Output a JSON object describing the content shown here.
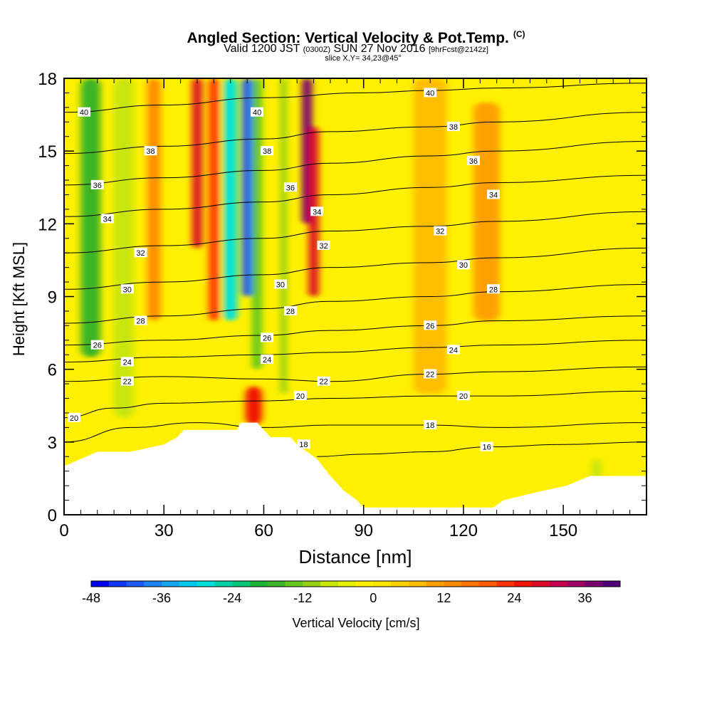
{
  "header": {
    "title": "Angled Section: Vertical Velocity & Pot.Temp.",
    "title_unit": "(C)",
    "valid_prefix": "Valid 1200 JST",
    "valid_utc": "(0300Z)",
    "valid_date": "SUN 27 Nov 2016",
    "forecast": "[9hrFcst@2142z]",
    "slice": "slice X,Y= 34,23@45°"
  },
  "chart_data": {
    "type": "heatmap",
    "xlabel": "Distance [nm]",
    "ylabel": "Height [Kft MSL]",
    "xlim": [
      0,
      175
    ],
    "ylim": [
      0,
      18
    ],
    "xticks": [
      0,
      30,
      60,
      90,
      120,
      150
    ],
    "yticks": [
      0,
      3,
      6,
      9,
      12,
      15,
      18
    ],
    "colorbar": {
      "label": "Vertical Velocity [cm/s]",
      "ticks": [
        -48,
        -36,
        -24,
        -12,
        0,
        12,
        24,
        36
      ],
      "bins": [
        -48,
        -45,
        -42,
        -39,
        -36,
        -33,
        -30,
        -27,
        -24,
        -21,
        -18,
        -15,
        -12,
        -9,
        -6,
        -3,
        0,
        3,
        6,
        9,
        12,
        15,
        18,
        21,
        24,
        27,
        30,
        33,
        36,
        39
      ],
      "colors": [
        "#0000f0",
        "#0f37f5",
        "#1e5af5",
        "#1e82f5",
        "#14a5f0",
        "#00c8f0",
        "#00e1dc",
        "#00d2a5",
        "#00c878",
        "#1eb43c",
        "#3cb428",
        "#64c81e",
        "#96d214",
        "#c8e60a",
        "#e6f000",
        "#fff000",
        "#ffe600",
        "#ffd200",
        "#ffbe00",
        "#ffa000",
        "#ff8c00",
        "#ff7300",
        "#ff5a00",
        "#ff3200",
        "#f01400",
        "#dc0a28",
        "#c80050",
        "#a00064",
        "#78006e",
        "#500078"
      ]
    },
    "terrain_kft": [
      [
        0,
        2.0
      ],
      [
        5,
        2.3
      ],
      [
        10,
        2.6
      ],
      [
        20,
        2.6
      ],
      [
        30,
        2.9
      ],
      [
        34,
        3.2
      ],
      [
        36,
        3.5
      ],
      [
        52,
        3.5
      ],
      [
        53,
        3.8
      ],
      [
        58,
        3.8
      ],
      [
        60,
        3.5
      ],
      [
        62,
        3.2
      ],
      [
        68,
        3.2
      ],
      [
        70,
        2.9
      ],
      [
        73,
        2.6
      ],
      [
        76,
        2.3
      ],
      [
        80,
        1.6
      ],
      [
        84,
        1.0
      ],
      [
        88,
        0.6
      ],
      [
        90,
        0.3
      ],
      [
        129,
        0.3
      ],
      [
        132,
        0.6
      ],
      [
        141,
        0.9
      ],
      [
        151,
        1.2
      ],
      [
        158,
        1.6
      ],
      [
        175,
        1.6
      ]
    ],
    "velocity_features": [
      {
        "x": 8,
        "y0": 6.5,
        "y1": 18,
        "w": 6,
        "value": -18
      },
      {
        "x": 18,
        "y0": 4,
        "y1": 18,
        "w": 6,
        "value": -9
      },
      {
        "x": 27,
        "y0": 8,
        "y1": 18,
        "w": 4,
        "value": 12
      },
      {
        "x": 40,
        "y0": 11,
        "y1": 18,
        "w": 3,
        "value": 27
      },
      {
        "x": 45,
        "y0": 8,
        "y1": 18,
        "w": 3,
        "value": 21
      },
      {
        "x": 50,
        "y0": 8,
        "y1": 18,
        "w": 4,
        "value": -30
      },
      {
        "x": 55,
        "y0": 9,
        "y1": 18,
        "w": 3,
        "value": -42
      },
      {
        "x": 58,
        "y0": 6,
        "y1": 18,
        "w": 3,
        "value": -15
      },
      {
        "x": 66,
        "y0": 5,
        "y1": 18,
        "w": 2,
        "value": -12
      },
      {
        "x": 73,
        "y0": 12,
        "y1": 18,
        "w": 3,
        "value": 36
      },
      {
        "x": 75,
        "y0": 9,
        "y1": 16,
        "w": 3,
        "value": 27
      },
      {
        "x": 110,
        "y0": 5,
        "y1": 18,
        "w": 10,
        "value": 6
      },
      {
        "x": 127,
        "y0": 8,
        "y1": 17,
        "w": 8,
        "value": 9
      },
      {
        "x": 57,
        "y0": 3.7,
        "y1": 5.3,
        "w": 5,
        "value": 24
      },
      {
        "x": 160,
        "y0": 1.4,
        "y1": 2.3,
        "w": 3,
        "value": -9
      }
    ],
    "contours": [
      {
        "label": "40",
        "points": [
          [
            0,
            16.6
          ],
          [
            30,
            16.9
          ],
          [
            60,
            17.2
          ],
          [
            90,
            17.4
          ],
          [
            110,
            17.5
          ],
          [
            130,
            17.6
          ],
          [
            175,
            17.8
          ]
        ]
      },
      {
        "label": "38",
        "points": [
          [
            0,
            14.9
          ],
          [
            30,
            15.2
          ],
          [
            60,
            15.5
          ],
          [
            80,
            15.8
          ],
          [
            110,
            16.0
          ],
          [
            130,
            16.2
          ],
          [
            175,
            16.6
          ]
        ]
      },
      {
        "label": "36",
        "points": [
          [
            0,
            13.6
          ],
          [
            30,
            13.9
          ],
          [
            60,
            14.2
          ],
          [
            80,
            14.5
          ],
          [
            110,
            14.8
          ],
          [
            130,
            15.0
          ],
          [
            175,
            15.4
          ]
        ]
      },
      {
        "label": "34",
        "points": [
          [
            0,
            12.3
          ],
          [
            30,
            12.6
          ],
          [
            60,
            12.9
          ],
          [
            80,
            13.2
          ],
          [
            110,
            13.5
          ],
          [
            130,
            13.7
          ],
          [
            175,
            14.0
          ]
        ]
      },
      {
        "label": "32",
        "points": [
          [
            0,
            10.8
          ],
          [
            30,
            11.1
          ],
          [
            60,
            11.4
          ],
          [
            80,
            11.7
          ],
          [
            110,
            11.9
          ],
          [
            130,
            12.1
          ],
          [
            175,
            12.5
          ]
        ]
      },
      {
        "label": "30",
        "points": [
          [
            0,
            9.3
          ],
          [
            30,
            9.6
          ],
          [
            60,
            9.9
          ],
          [
            80,
            10.2
          ],
          [
            110,
            10.4
          ],
          [
            130,
            10.6
          ],
          [
            175,
            11.0
          ]
        ]
      },
      {
        "label": "28",
        "points": [
          [
            0,
            7.9
          ],
          [
            30,
            8.2
          ],
          [
            60,
            8.5
          ],
          [
            80,
            8.8
          ],
          [
            110,
            9.0
          ],
          [
            130,
            9.2
          ],
          [
            175,
            9.5
          ]
        ]
      },
      {
        "label": "26",
        "points": [
          [
            0,
            7.0
          ],
          [
            30,
            7.2
          ],
          [
            60,
            7.4
          ],
          [
            80,
            7.6
          ],
          [
            110,
            7.8
          ],
          [
            130,
            8.0
          ],
          [
            175,
            8.2
          ]
        ]
      },
      {
        "label": "24",
        "points": [
          [
            0,
            6.3
          ],
          [
            30,
            6.5
          ],
          [
            60,
            6.6
          ],
          [
            80,
            6.7
          ],
          [
            110,
            6.9
          ],
          [
            130,
            7.0
          ],
          [
            175,
            7.2
          ]
        ]
      },
      {
        "label": "22",
        "points": [
          [
            0,
            5.5
          ],
          [
            30,
            5.7
          ],
          [
            60,
            5.6
          ],
          [
            80,
            5.5
          ],
          [
            110,
            5.8
          ],
          [
            130,
            5.9
          ],
          [
            175,
            6.1
          ]
        ]
      },
      {
        "label": "20",
        "points": [
          [
            0,
            4.0
          ],
          [
            15,
            4.4
          ],
          [
            30,
            4.6
          ],
          [
            60,
            4.7
          ],
          [
            80,
            4.8
          ],
          [
            110,
            4.9
          ],
          [
            130,
            4.9
          ],
          [
            175,
            5.1
          ]
        ]
      },
      {
        "label": "18",
        "points": [
          [
            0,
            3.0
          ],
          [
            20,
            3.6
          ],
          [
            40,
            3.8
          ],
          [
            60,
            3.6
          ],
          [
            80,
            3.7
          ],
          [
            110,
            3.7
          ],
          [
            130,
            3.6
          ],
          [
            175,
            3.8
          ]
        ]
      },
      {
        "label": "16",
        "points": [
          [
            76,
            2.4
          ],
          [
            90,
            2.5
          ],
          [
            110,
            2.6
          ],
          [
            128,
            2.8
          ],
          [
            150,
            2.9
          ],
          [
            175,
            3.0
          ]
        ]
      }
    ],
    "contour_labels": [
      {
        "text": "40",
        "x": 6,
        "y": 16.6
      },
      {
        "text": "38",
        "x": 26,
        "y": 15.0
      },
      {
        "text": "36",
        "x": 10,
        "y": 13.6
      },
      {
        "text": "34",
        "x": 13,
        "y": 12.2
      },
      {
        "text": "32",
        "x": 23,
        "y": 10.8
      },
      {
        "text": "30",
        "x": 19,
        "y": 9.3
      },
      {
        "text": "28",
        "x": 23,
        "y": 8.0
      },
      {
        "text": "26",
        "x": 10,
        "y": 7.0
      },
      {
        "text": "24",
        "x": 19,
        "y": 6.3
      },
      {
        "text": "22",
        "x": 19,
        "y": 5.5
      },
      {
        "text": "20",
        "x": 3,
        "y": 4.0
      },
      {
        "text": "40",
        "x": 58,
        "y": 16.6
      },
      {
        "text": "38",
        "x": 61,
        "y": 15.0
      },
      {
        "text": "36",
        "x": 68,
        "y": 13.5
      },
      {
        "text": "34",
        "x": 76,
        "y": 12.5
      },
      {
        "text": "32",
        "x": 78,
        "y": 11.1
      },
      {
        "text": "30",
        "x": 65,
        "y": 9.5
      },
      {
        "text": "28",
        "x": 68,
        "y": 8.4
      },
      {
        "text": "26",
        "x": 61,
        "y": 7.3
      },
      {
        "text": "24",
        "x": 61,
        "y": 6.4
      },
      {
        "text": "22",
        "x": 78,
        "y": 5.5
      },
      {
        "text": "20",
        "x": 71,
        "y": 4.9
      },
      {
        "text": "18",
        "x": 72,
        "y": 2.9
      },
      {
        "text": "40",
        "x": 110,
        "y": 17.4
      },
      {
        "text": "38",
        "x": 117,
        "y": 16.0
      },
      {
        "text": "36",
        "x": 123,
        "y": 14.6
      },
      {
        "text": "34",
        "x": 129,
        "y": 13.2
      },
      {
        "text": "32",
        "x": 113,
        "y": 11.7
      },
      {
        "text": "30",
        "x": 120,
        "y": 10.3
      },
      {
        "text": "28",
        "x": 129,
        "y": 9.3
      },
      {
        "text": "26",
        "x": 110,
        "y": 7.8
      },
      {
        "text": "24",
        "x": 117,
        "y": 6.8
      },
      {
        "text": "22",
        "x": 110,
        "y": 5.8
      },
      {
        "text": "20",
        "x": 120,
        "y": 4.9
      },
      {
        "text": "18",
        "x": 110,
        "y": 3.7
      },
      {
        "text": "16",
        "x": 127,
        "y": 2.8
      }
    ]
  }
}
